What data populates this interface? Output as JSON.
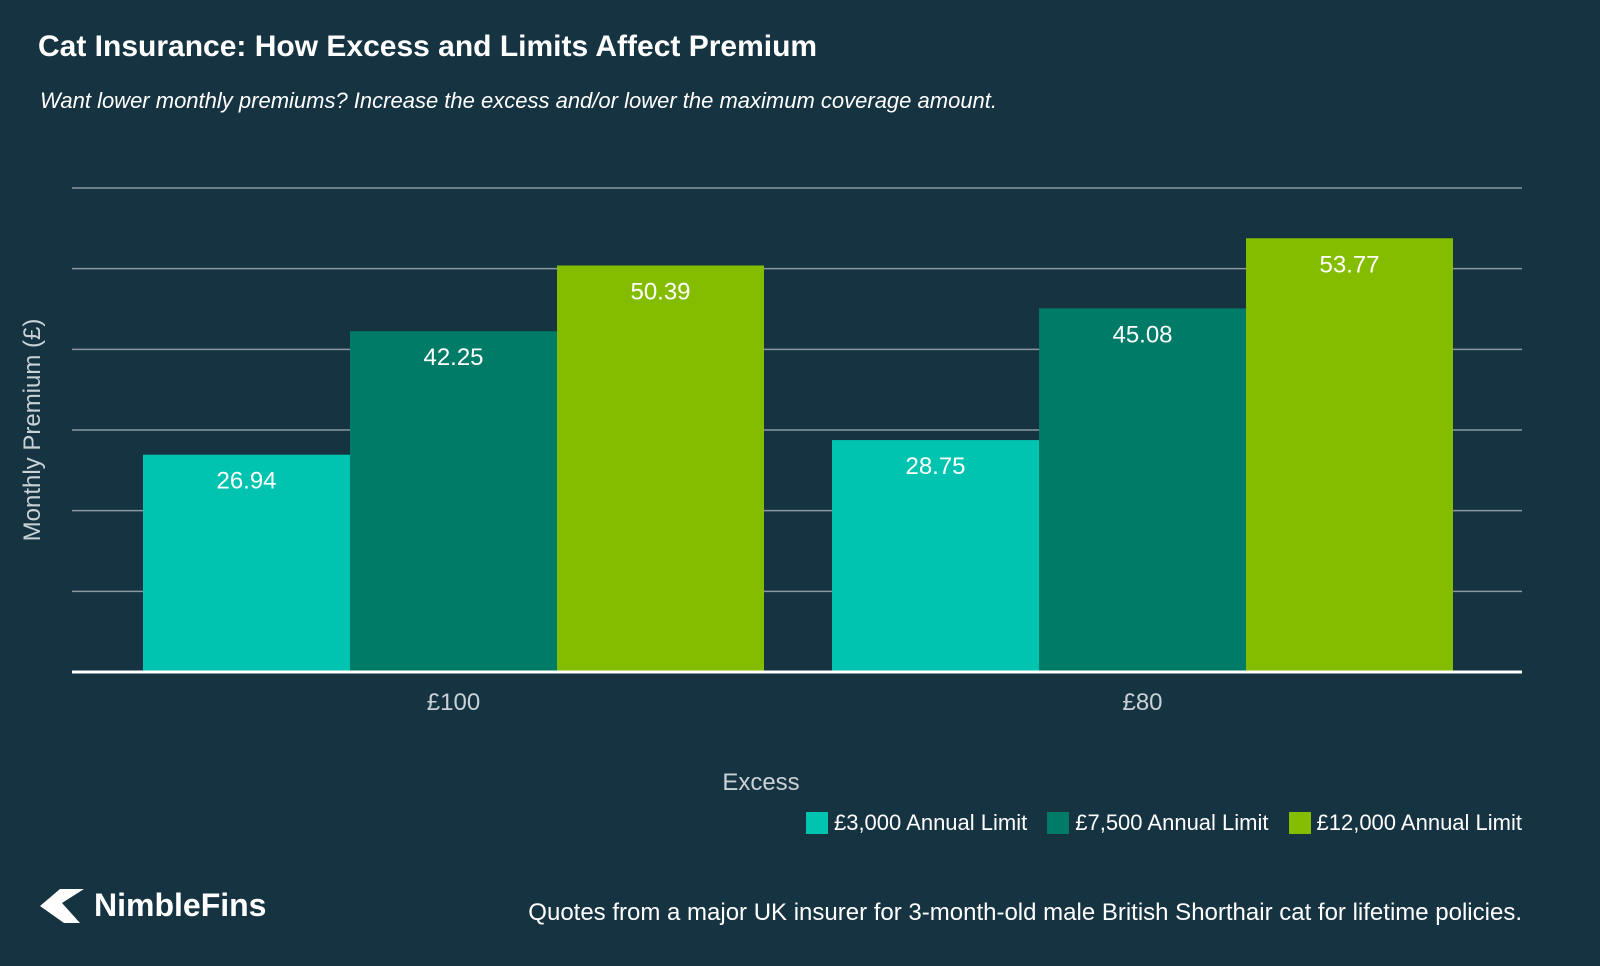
{
  "header": {
    "title": "Cat Insurance: How Excess and Limits Affect Premium",
    "subtitle": "Want lower monthly premiums? Increase the excess and/or lower the maximum coverage amount."
  },
  "chart_data": {
    "type": "bar",
    "title": "Cat Insurance: How Excess and Limits Affect Premium",
    "subtitle": "Want lower monthly premiums? Increase the excess and/or lower the maximum coverage amount.",
    "xlabel": "Excess",
    "ylabel": "Monthly Premium (£)",
    "categories": [
      "£100",
      "£80"
    ],
    "series": [
      {
        "name": "£3,000 Annual Limit",
        "values": [
          26.94,
          28.75
        ],
        "labels": [
          "26.94",
          "28.75"
        ],
        "color": "#00c3b0"
      },
      {
        "name": "£7,500 Annual Limit",
        "values": [
          42.25,
          45.08
        ],
        "labels": [
          "42.25",
          "45.08"
        ],
        "color": "#007b67"
      },
      {
        "name": "£12,000 Annual Limit",
        "values": [
          50.39,
          53.77
        ],
        "labels": [
          "50.39",
          "53.77"
        ],
        "color": "#84bd00"
      }
    ],
    "ylim": [
      0,
      60
    ],
    "grid": true,
    "legend_position": "bottom-right"
  },
  "branding": {
    "logo_text": "NimbleFins",
    "logo_icon": "chevron-arrow-icon"
  },
  "footnote": "Quotes from a major UK insurer for 3-month-old male British Shorthair cat for lifetime policies.",
  "colors": {
    "background": "#163341",
    "gridline": "#8a99a1",
    "axis": "#ffffff",
    "axis_text": "#c8d2d6"
  }
}
